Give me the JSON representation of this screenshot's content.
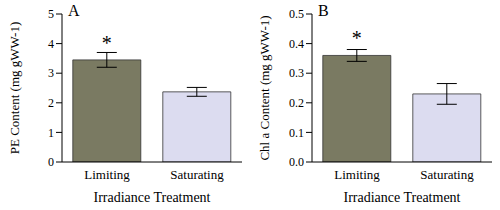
{
  "chart_data": [
    {
      "type": "bar",
      "title": "A",
      "y_label": "PE Content (mg gWW-1)",
      "x_label": "Irradiance Treatment",
      "categories": [
        "Limiting",
        "Saturating"
      ],
      "values": [
        3.45,
        2.37
      ],
      "errors": [
        0.25,
        0.15
      ],
      "colors": [
        "#7a7a62",
        "#dcdcf0"
      ],
      "ylim": [
        0,
        5
      ],
      "yticks": [
        0,
        1,
        2,
        3,
        4,
        5
      ],
      "annotations": [
        {
          "text": "*",
          "category": "Limiting"
        }
      ]
    },
    {
      "type": "bar",
      "title": "B",
      "y_label": "Chl a Content (mg gWW-1)",
      "x_label": "Irradiance Treatment",
      "categories": [
        "Limiting",
        "Saturating"
      ],
      "values": [
        0.36,
        0.23
      ],
      "errors": [
        0.02,
        0.035
      ],
      "colors": [
        "#7a7a62",
        "#dcdcf0"
      ],
      "ylim": [
        0,
        0.5
      ],
      "yticks": [
        {
          "value": 0,
          "label": "0.0"
        },
        0.1,
        0.2,
        0.3,
        0.4,
        0.5
      ],
      "annotations": [
        {
          "text": "*",
          "category": "Limiting"
        }
      ]
    }
  ]
}
